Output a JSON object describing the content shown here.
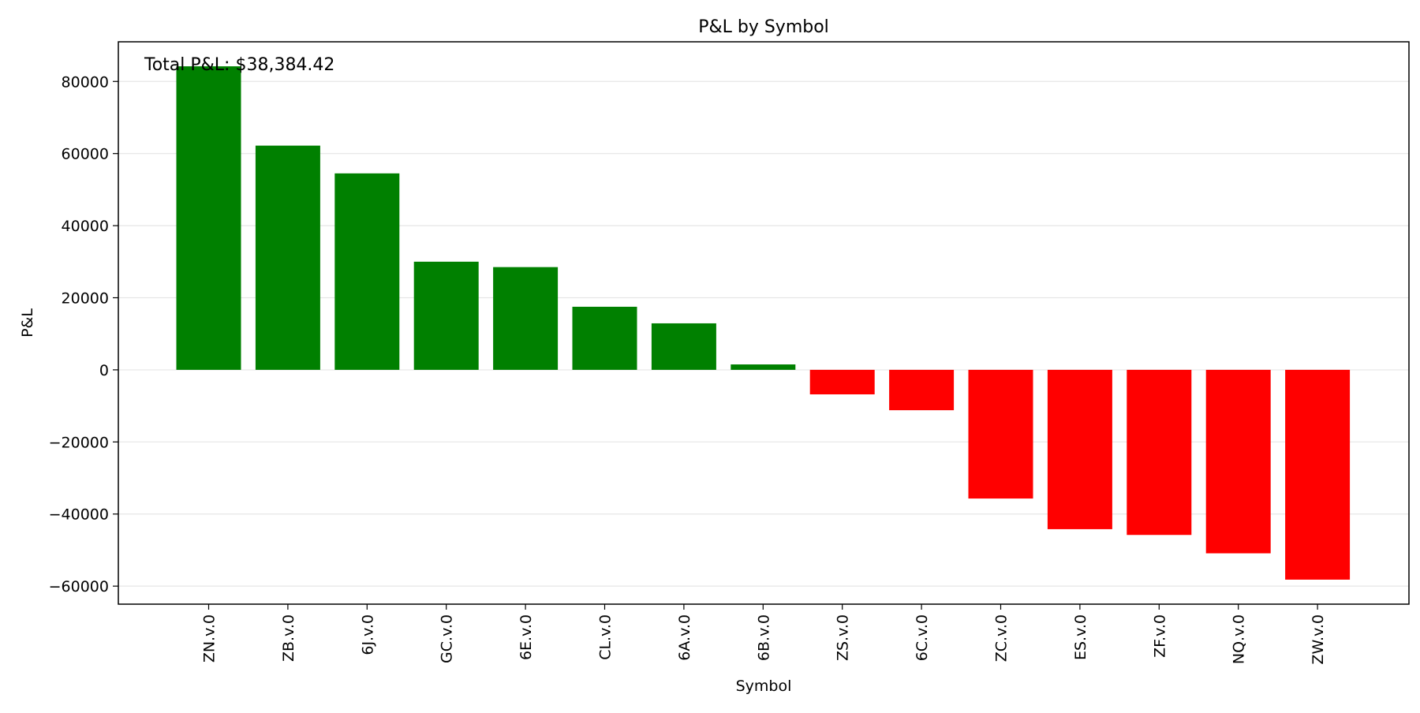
{
  "chart_data": {
    "type": "bar",
    "title": "P&L by Symbol",
    "xlabel": "Symbol",
    "ylabel": "P&L",
    "annotation": "Total P&L: $38,384.42",
    "categories": [
      "ZN.v.0",
      "ZB.v.0",
      "6J.v.0",
      "GC.v.0",
      "6E.v.0",
      "CL.v.0",
      "6A.v.0",
      "6B.v.0",
      "ZS.v.0",
      "6C.v.0",
      "ZC.v.0",
      "ES.v.0",
      "ZF.v.0",
      "NQ.v.0",
      "ZW.v.0"
    ],
    "values": [
      84200,
      62200,
      54500,
      30000,
      28500,
      17500,
      12900,
      1500,
      -6800,
      -11200,
      -35700,
      -44200,
      -45800,
      -50900,
      -58200
    ],
    "ylim": [
      -65000,
      91000
    ],
    "yticks": [
      -60000,
      -40000,
      -20000,
      0,
      20000,
      40000,
      60000,
      80000
    ],
    "ytick_labels": [
      "−60000",
      "−40000",
      "−20000",
      "0",
      "20000",
      "40000",
      "60000",
      "80000"
    ],
    "grid": "horizontal",
    "colors": {
      "positive": "#008000",
      "negative": "#ff0000",
      "grid": "#e6e6e6",
      "axes": "#000000"
    }
  }
}
